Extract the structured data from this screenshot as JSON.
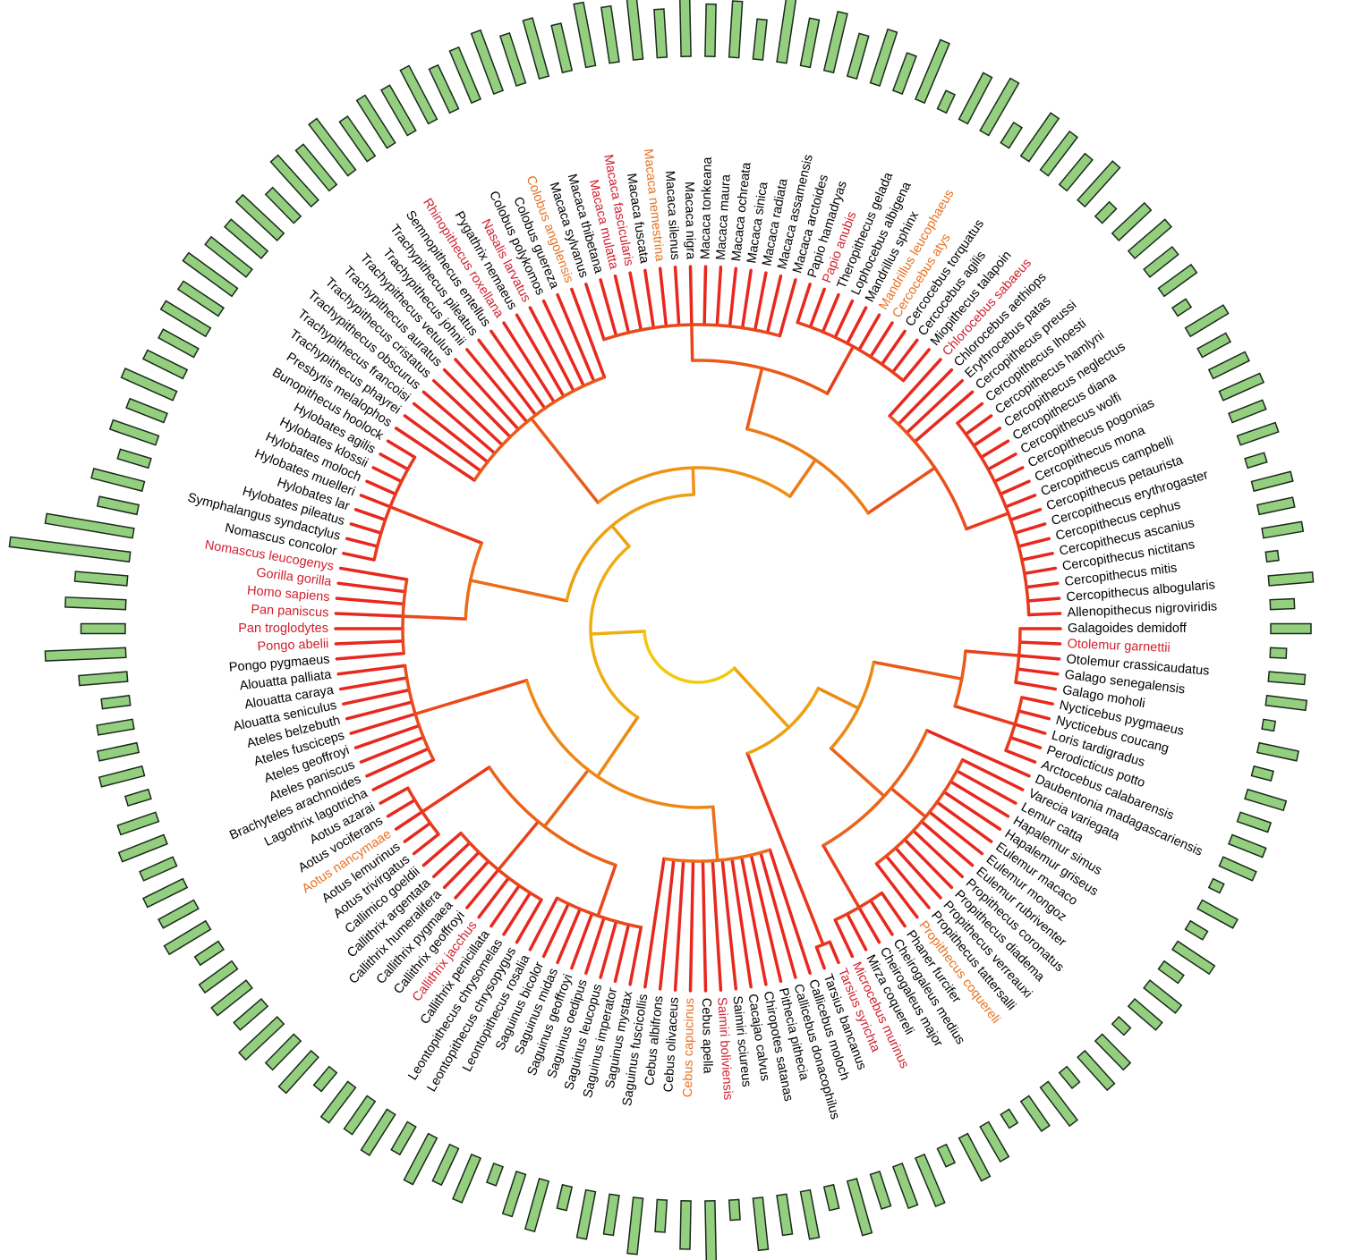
{
  "leaves": [
    {
      "label": "Galagoides demidoff",
      "color": "#000000"
    },
    {
      "label": "Otolemur garnettii",
      "color": "#d0202e"
    },
    {
      "label": "Otolemur crassicaudatus",
      "color": "#000000"
    },
    {
      "label": "Galago senegalensis",
      "color": "#000000"
    },
    {
      "label": "Galago moholi",
      "color": "#000000"
    },
    {
      "label": "Nycticebus pygmaeus",
      "color": "#000000"
    },
    {
      "label": "Nycticebus coucang",
      "color": "#000000"
    },
    {
      "label": "Loris tardigradus",
      "color": "#000000"
    },
    {
      "label": "Perodicticus potto",
      "color": "#000000"
    },
    {
      "label": "Arctocebus calabarensis",
      "color": "#000000"
    },
    {
      "label": "Daubentonia madagascariensis",
      "color": "#000000"
    },
    {
      "label": "Varecia variegata",
      "color": "#000000"
    },
    {
      "label": "Lemur catta",
      "color": "#000000"
    },
    {
      "label": "Hapalemur simus",
      "color": "#000000"
    },
    {
      "label": "Hapalemur griseus",
      "color": "#000000"
    },
    {
      "label": "Eulemur macaco",
      "color": "#000000"
    },
    {
      "label": "Eulemur mongoz",
      "color": "#000000"
    },
    {
      "label": "Eulemur rubriventer",
      "color": "#000000"
    },
    {
      "label": "Propithecus coronatus",
      "color": "#000000"
    },
    {
      "label": "Propithecus diadema",
      "color": "#000000"
    },
    {
      "label": "Propithecus verreauxi",
      "color": "#000000"
    },
    {
      "label": "Propithecus tattersalli",
      "color": "#000000"
    },
    {
      "label": "Propithecus coquereli",
      "color": "#e8701e"
    },
    {
      "label": "Phaner furcifer",
      "color": "#000000"
    },
    {
      "label": "Cheirogaleus medius",
      "color": "#000000"
    },
    {
      "label": "Cheirogaleus major",
      "color": "#000000"
    },
    {
      "label": "Mirza coquereli",
      "color": "#000000"
    },
    {
      "label": "Microcebus murinus",
      "color": "#d0202e"
    },
    {
      "label": "Tarsius syrichta",
      "color": "#d0202e"
    },
    {
      "label": "Tarsius bancanus",
      "color": "#000000"
    },
    {
      "label": "Callicebus moloch",
      "color": "#000000"
    },
    {
      "label": "Callicebus donacophilus",
      "color": "#000000"
    },
    {
      "label": "Pithecia pithecia",
      "color": "#000000"
    },
    {
      "label": "Chiropotes satanas",
      "color": "#000000"
    },
    {
      "label": "Cacajao calvus",
      "color": "#000000"
    },
    {
      "label": "Saimiri sciureus",
      "color": "#000000"
    },
    {
      "label": "Saimiri boliviensis",
      "color": "#d0202e"
    },
    {
      "label": "Cebus apella",
      "color": "#000000"
    },
    {
      "label": "Cebus capucinus",
      "color": "#e8701e"
    },
    {
      "label": "Cebus olivaceus",
      "color": "#000000"
    },
    {
      "label": "Cebus albifrons",
      "color": "#000000"
    },
    {
      "label": "Saguinus fuscicollis",
      "color": "#000000"
    },
    {
      "label": "Saguinus mystax",
      "color": "#000000"
    },
    {
      "label": "Saguinus imperator",
      "color": "#000000"
    },
    {
      "label": "Saguinus leucopus",
      "color": "#000000"
    },
    {
      "label": "Saguinus oedipus",
      "color": "#000000"
    },
    {
      "label": "Saguinus geoffroyi",
      "color": "#000000"
    },
    {
      "label": "Saguinus midas",
      "color": "#000000"
    },
    {
      "label": "Saguinus bicolor",
      "color": "#000000"
    },
    {
      "label": "Leontopithecus rosalia",
      "color": "#000000"
    },
    {
      "label": "Leontopithecus chrysopygus",
      "color": "#000000"
    },
    {
      "label": "Leontopithecus chrysomelas",
      "color": "#000000"
    },
    {
      "label": "Callithrix penicillata",
      "color": "#000000"
    },
    {
      "label": "Callithrix jacchus",
      "color": "#d0202e"
    },
    {
      "label": "Callithrix geoffroyi",
      "color": "#000000"
    },
    {
      "label": "Callithrix pygmaea",
      "color": "#000000"
    },
    {
      "label": "Callithrix humeralifera",
      "color": "#000000"
    },
    {
      "label": "Callithrix argentata",
      "color": "#000000"
    },
    {
      "label": "Callimico goeldii",
      "color": "#000000"
    },
    {
      "label": "Aotus trivirgatus",
      "color": "#000000"
    },
    {
      "label": "Aotus lemurinus",
      "color": "#000000"
    },
    {
      "label": "Aotus nancymaae",
      "color": "#e8701e"
    },
    {
      "label": "Aotus vociferans",
      "color": "#000000"
    },
    {
      "label": "Aotus azarai",
      "color": "#000000"
    },
    {
      "label": "Lagothrix lagotricha",
      "color": "#000000"
    },
    {
      "label": "Brachyteles arachnoides",
      "color": "#000000"
    },
    {
      "label": "Ateles paniscus",
      "color": "#000000"
    },
    {
      "label": "Ateles geoffroyi",
      "color": "#000000"
    },
    {
      "label": "Ateles fusciceps",
      "color": "#000000"
    },
    {
      "label": "Ateles belzebuth",
      "color": "#000000"
    },
    {
      "label": "Alouatta seniculus",
      "color": "#000000"
    },
    {
      "label": "Alouatta caraya",
      "color": "#000000"
    },
    {
      "label": "Alouatta palliata",
      "color": "#000000"
    },
    {
      "label": "Pongo pygmaeus",
      "color": "#000000"
    },
    {
      "label": "Pongo abelii",
      "color": "#d0202e"
    },
    {
      "label": "Pan troglodytes",
      "color": "#d0202e"
    },
    {
      "label": "Pan paniscus",
      "color": "#d0202e"
    },
    {
      "label": "Homo sapiens",
      "color": "#d0202e"
    },
    {
      "label": "Gorilla gorilla",
      "color": "#d0202e"
    },
    {
      "label": "Nomascus leucogenys",
      "color": "#d0202e"
    },
    {
      "label": "Nomascus concolor",
      "color": "#000000"
    },
    {
      "label": "Symphalangus syndactylus",
      "color": "#000000"
    },
    {
      "label": "Hylobates pileatus",
      "color": "#000000"
    },
    {
      "label": "Hylobates lar",
      "color": "#000000"
    },
    {
      "label": "Hylobates muelleri",
      "color": "#000000"
    },
    {
      "label": "Hylobates moloch",
      "color": "#000000"
    },
    {
      "label": "Hylobates klossii",
      "color": "#000000"
    },
    {
      "label": "Hylobates agilis",
      "color": "#000000"
    },
    {
      "label": "Bunopithecus hoolock",
      "color": "#000000"
    },
    {
      "label": "Presbytis melalophos",
      "color": "#000000"
    },
    {
      "label": "Trachypithecus phayrei",
      "color": "#000000"
    },
    {
      "label": "Trachypithecus francoisi",
      "color": "#000000"
    },
    {
      "label": "Trachypithecus obscurus",
      "color": "#000000"
    },
    {
      "label": "Trachypithecus cristatus",
      "color": "#000000"
    },
    {
      "label": "Trachypithecus auratus",
      "color": "#000000"
    },
    {
      "label": "Trachypithecus vetulus",
      "color": "#000000"
    },
    {
      "label": "Trachypithecus johnii",
      "color": "#000000"
    },
    {
      "label": "Trachypithecus pileatus",
      "color": "#000000"
    },
    {
      "label": "Semnopithecus entellus",
      "color": "#000000"
    },
    {
      "label": "Rhinopithecus roxellana",
      "color": "#d0202e"
    },
    {
      "label": "Pygathrix nemaeus",
      "color": "#000000"
    },
    {
      "label": "Nasalis larvatus",
      "color": "#d0202e"
    },
    {
      "label": "Colobus polykomos",
      "color": "#000000"
    },
    {
      "label": "Colobus guereza",
      "color": "#000000"
    },
    {
      "label": "Colobus angolensis",
      "color": "#e8701e"
    },
    {
      "label": "Macaca sylvanus",
      "color": "#000000"
    },
    {
      "label": "Macaca thibetana",
      "color": "#000000"
    },
    {
      "label": "Macaca mulatta",
      "color": "#d0202e"
    },
    {
      "label": "Macaca fascicularis",
      "color": "#d0202e"
    },
    {
      "label": "Macaca fuscata",
      "color": "#000000"
    },
    {
      "label": "Macaca nemestrina",
      "color": "#e8701e"
    },
    {
      "label": "Macaca silenus",
      "color": "#000000"
    },
    {
      "label": "Macaca nigra",
      "color": "#000000"
    },
    {
      "label": "Macaca tonkeana",
      "color": "#000000"
    },
    {
      "label": "Macaca maura",
      "color": "#000000"
    },
    {
      "label": "Macaca ochreata",
      "color": "#000000"
    },
    {
      "label": "Macaca sinica",
      "color": "#000000"
    },
    {
      "label": "Macaca radiata",
      "color": "#000000"
    },
    {
      "label": "Macaca assamensis",
      "color": "#000000"
    },
    {
      "label": "Macaca arctoides",
      "color": "#000000"
    },
    {
      "label": "Papio hamadryas",
      "color": "#000000"
    },
    {
      "label": "Papio anubis",
      "color": "#d0202e"
    },
    {
      "label": "Theropithecus gelada",
      "color": "#000000"
    },
    {
      "label": "Lophocebus albigena",
      "color": "#000000"
    },
    {
      "label": "Mandrillus sphinx",
      "color": "#000000"
    },
    {
      "label": "Mandrillus leucophaeus",
      "color": "#e8701e"
    },
    {
      "label": "Cercocebus atys",
      "color": "#e8701e"
    },
    {
      "label": "Cercocebus torquatus",
      "color": "#000000"
    },
    {
      "label": "Cercocebus agilis",
      "color": "#000000"
    },
    {
      "label": "Miopithecus talapoin",
      "color": "#000000"
    },
    {
      "label": "Chlorocebus sabaeus",
      "color": "#d0202e"
    },
    {
      "label": "Chlorocebus aethiops",
      "color": "#000000"
    },
    {
      "label": "Erythrocebus patas",
      "color": "#000000"
    },
    {
      "label": "Cercopithecus preussi",
      "color": "#000000"
    },
    {
      "label": "Cercopithecus lhoesti",
      "color": "#000000"
    },
    {
      "label": "Cercopithecus hamlyni",
      "color": "#000000"
    },
    {
      "label": "Cercopithecus neglectus",
      "color": "#000000"
    },
    {
      "label": "Cercopithecus diana",
      "color": "#000000"
    },
    {
      "label": "Cercopithecus wolfi",
      "color": "#000000"
    },
    {
      "label": "Cercopithecus pogonias",
      "color": "#000000"
    },
    {
      "label": "Cercopithecus mona",
      "color": "#000000"
    },
    {
      "label": "Cercopithecus campbelli",
      "color": "#000000"
    },
    {
      "label": "Cercopithecus petaurista",
      "color": "#000000"
    },
    {
      "label": "Cercopithecus erythrogaster",
      "color": "#000000"
    },
    {
      "label": "Cercopithecus cephus",
      "color": "#000000"
    },
    {
      "label": "Cercopithecus ascanius",
      "color": "#000000"
    },
    {
      "label": "Cercopithecus nictitans",
      "color": "#000000"
    },
    {
      "label": "Cercopithecus mitis",
      "color": "#000000"
    },
    {
      "label": "Cercopithecus albogularis",
      "color": "#000000"
    },
    {
      "label": "Allenopithecus nigroviridis",
      "color": "#000000"
    }
  ],
  "bar_color": "#94cf80",
  "bar_values": [
    1.0,
    0.4,
    0.9,
    1.0,
    0.3,
    1.0,
    0.5,
    1.0,
    0.8,
    0.9,
    0.9,
    0.3,
    1.0,
    0.5,
    1.1,
    0.6,
    1.0,
    0.9,
    0.4,
    1.0,
    1.1,
    0.5,
    1.2,
    0.9,
    0.4,
    1.0,
    1.2,
    0.5,
    1.3,
    1.1,
    0.9,
    1.4,
    0.6,
    1.2,
    1.0,
    1.3,
    0.5,
    1.6,
    1.2,
    0.8,
    1.4,
    1.0,
    1.2,
    0.6,
    1.3,
    1.1,
    0.5,
    1.2,
    1.0,
    1.3,
    0.8,
    1.2,
    1.0,
    1.1,
    0.6,
    1.2,
    1.0,
    1.3,
    0.9,
    1.1,
    1.0,
    0.7,
    1.2,
    1.0,
    1.1,
    0.9,
    1.2,
    1.0,
    0.6,
    1.1,
    1.0,
    0.9,
    0.7,
    1.2,
    2.0,
    1.1,
    1.5,
    1.3,
    3.0,
    2.2,
    1.0,
    1.3,
    0.8,
    1.2,
    1.0,
    1.4,
    1.1,
    1.0,
    1.3,
    1.2,
    1.5,
    1.3,
    1.2,
    1.4,
    1.0,
    1.5,
    1.3,
    1.6,
    1.2,
    1.4,
    1.3,
    1.5,
    1.2,
    1.4,
    1.6,
    1.3,
    1.5,
    1.2,
    1.6,
    1.4,
    1.8,
    1.2,
    1.5,
    1.3,
    1.4,
    1.0,
    1.6,
    1.2,
    1.5,
    1.1,
    1.4,
    1.0,
    1.6,
    0.5,
    1.3,
    1.5,
    0.6,
    1.3,
    1.2,
    1.0,
    1.3,
    0.5,
    1.1,
    1.2,
    0.9,
    1.0,
    0.4,
    1.1,
    0.8,
    1.0,
    1.1,
    0.9,
    1.0,
    0.5,
    1.0,
    0.9,
    1.0,
    0.3,
    1.1,
    0.6
  ]
}
